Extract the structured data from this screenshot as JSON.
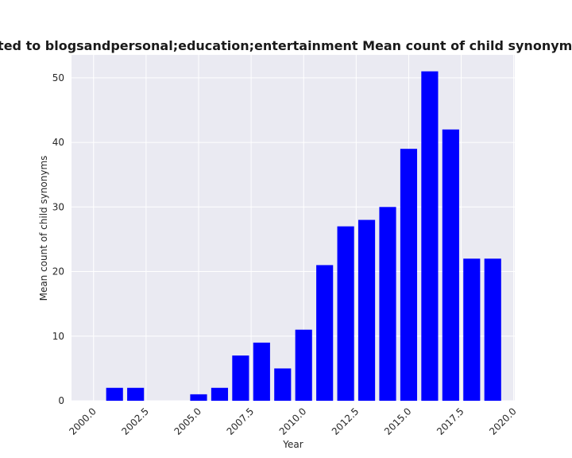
{
  "chart_data": {
    "type": "bar",
    "title": "are related to blogsandpersonal;education;entertainment Mean count of child synonyms in priv",
    "xlabel": "Year",
    "ylabel": "Mean count of child synonyms",
    "x": [
      2001,
      2002,
      2005,
      2006,
      2007,
      2008,
      2009,
      2010,
      2011,
      2012,
      2013,
      2014,
      2015,
      2016,
      2017,
      2018,
      2019
    ],
    "values": [
      2,
      2,
      1,
      2,
      7,
      9,
      5,
      11,
      21,
      27,
      28,
      30,
      39,
      51,
      42,
      22,
      22
    ],
    "xlim": [
      1998.95,
      2020.05
    ],
    "ylim": [
      0,
      53.55
    ],
    "xticks": [
      "2000.0",
      "2002.5",
      "2005.0",
      "2007.5",
      "2010.0",
      "2012.5",
      "2015.0",
      "2017.5",
      "2020.0"
    ],
    "yticks": [
      "0",
      "10",
      "20",
      "30",
      "40",
      "50"
    ],
    "grid": true,
    "bar_color": "#0000ff",
    "background_color": "#eaeaf2"
  }
}
